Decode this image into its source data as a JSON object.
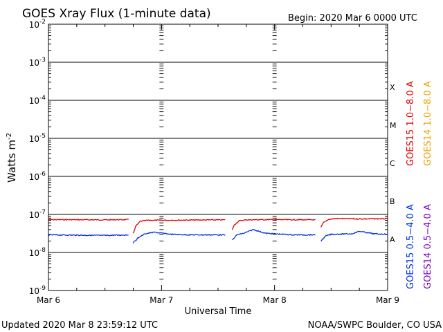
{
  "header": {
    "title": "GOES Xray Flux (1-minute data)",
    "begin": "Begin:  2020 Mar 6 0000 UTC"
  },
  "footer": {
    "updated": "Updated 2020 Mar  8 23:59:12 UTC",
    "credit": "NOAA/SWPC Boulder, CO USA"
  },
  "chart_data": {
    "type": "line",
    "title": "GOES Xray Flux (1-minute data)",
    "xlabel": "Universal Time",
    "ylabel": "Watts m",
    "ylabel_exponent": "-2",
    "y_scale": "log",
    "ylim": [
      1e-09,
      0.01
    ],
    "xlim": [
      "2020-03-06 00:00",
      "2020-03-09 00:00"
    ],
    "x_ticks": [
      "Mar 6",
      "Mar 7",
      "Mar 8",
      "Mar 9"
    ],
    "y_ticks": [
      {
        "base": "10",
        "exp": "-9",
        "value": 1e-09
      },
      {
        "base": "10",
        "exp": "-8",
        "value": 1e-08
      },
      {
        "base": "10",
        "exp": "-7",
        "value": 1e-07
      },
      {
        "base": "10",
        "exp": "-6",
        "value": 1e-06
      },
      {
        "base": "10",
        "exp": "-5",
        "value": 1e-05
      },
      {
        "base": "10",
        "exp": "-4",
        "value": 0.0001
      },
      {
        "base": "10",
        "exp": "-3",
        "value": 0.001
      },
      {
        "base": "10",
        "exp": "-2",
        "value": 0.01
      }
    ],
    "flare_classes": [
      {
        "label": "A",
        "value": 2.2e-08
      },
      {
        "label": "B",
        "value": 2.2e-07
      },
      {
        "label": "C",
        "value": 2.2e-06
      },
      {
        "label": "M",
        "value": 2.2e-05
      },
      {
        "label": "X",
        "value": 0.00022
      }
    ],
    "legend": [
      {
        "text": "GOES15 1.0−8.0 A",
        "color": "#e00000"
      },
      {
        "text": "GOES14 1.0−8.0 A",
        "color": "#f0a000"
      },
      {
        "text": "GOES15 0.5−4.0 A",
        "color": "#0030e0"
      },
      {
        "text": "GOES14 0.5−4.0 A",
        "color": "#7a00c8"
      }
    ],
    "series": [
      {
        "name": "GOES15 1.0−8.0 A",
        "color": "#e00000",
        "segments": [
          {
            "x": [
              "2020-03-06 00:00",
              "2020-03-06 12:00",
              "2020-03-06 17:00"
            ],
            "y": [
              7.3e-08,
              7.2e-08,
              7.3e-08
            ]
          },
          {
            "x": [
              "2020-03-06 18:00",
              "2020-03-06 18:30",
              "2020-03-06 19:30",
              "2020-03-06 21:00",
              "2020-03-07 06:00",
              "2020-03-07 13:30"
            ],
            "y": [
              3.2e-08,
              4.8e-08,
              6.6e-08,
              7e-08,
              7.1e-08,
              7.2e-08
            ]
          },
          {
            "x": [
              "2020-03-07 15:00",
              "2020-03-07 15:30",
              "2020-03-07 16:30",
              "2020-03-07 18:00",
              "2020-03-08 00:00",
              "2020-03-08 08:40"
            ],
            "y": [
              4e-08,
              5.4e-08,
              6.8e-08,
              7.2e-08,
              7.3e-08,
              7.2e-08
            ]
          },
          {
            "x": [
              "2020-03-08 09:50",
              "2020-03-08 10:20",
              "2020-03-08 11:30",
              "2020-03-08 13:00",
              "2020-03-08 18:00",
              "2020-03-09 00:00"
            ],
            "y": [
              4.5e-08,
              6e-08,
              7.4e-08,
              7.8e-08,
              7.6e-08,
              7.7e-08
            ]
          }
        ]
      },
      {
        "name": "GOES15 0.5−4.0 A",
        "color": "#0030e0",
        "segments": [
          {
            "x": [
              "2020-03-06 00:00",
              "2020-03-06 12:00",
              "2020-03-06 17:00"
            ],
            "y": [
              2.9e-08,
              2.8e-08,
              2.9e-08
            ]
          },
          {
            "x": [
              "2020-03-06 18:00",
              "2020-03-06 19:00",
              "2020-03-06 20:30",
              "2020-03-06 22:30",
              "2020-03-07 02:00",
              "2020-03-07 06:00",
              "2020-03-07 13:30"
            ],
            "y": [
              1.8e-08,
              2.4e-08,
              3.1e-08,
              3.4e-08,
              3e-08,
              2.9e-08,
              2.9e-08
            ]
          },
          {
            "x": [
              "2020-03-07 15:00",
              "2020-03-07 16:00",
              "2020-03-07 17:30",
              "2020-03-07 19:30",
              "2020-03-07 22:00",
              "2020-03-08 04:00",
              "2020-03-08 08:40"
            ],
            "y": [
              2.1e-08,
              2.9e-08,
              3.2e-08,
              4e-08,
              3.2e-08,
              2.9e-08,
              2.9e-08
            ]
          },
          {
            "x": [
              "2020-03-08 09:50",
              "2020-03-08 10:50",
              "2020-03-08 12:00",
              "2020-03-08 16:30",
              "2020-03-08 18:00",
              "2020-03-08 21:00",
              "2020-03-09 00:00"
            ],
            "y": [
              2e-08,
              2.7e-08,
              3e-08,
              3.1e-08,
              3.6e-08,
              3.1e-08,
              3e-08
            ]
          }
        ]
      }
    ]
  }
}
